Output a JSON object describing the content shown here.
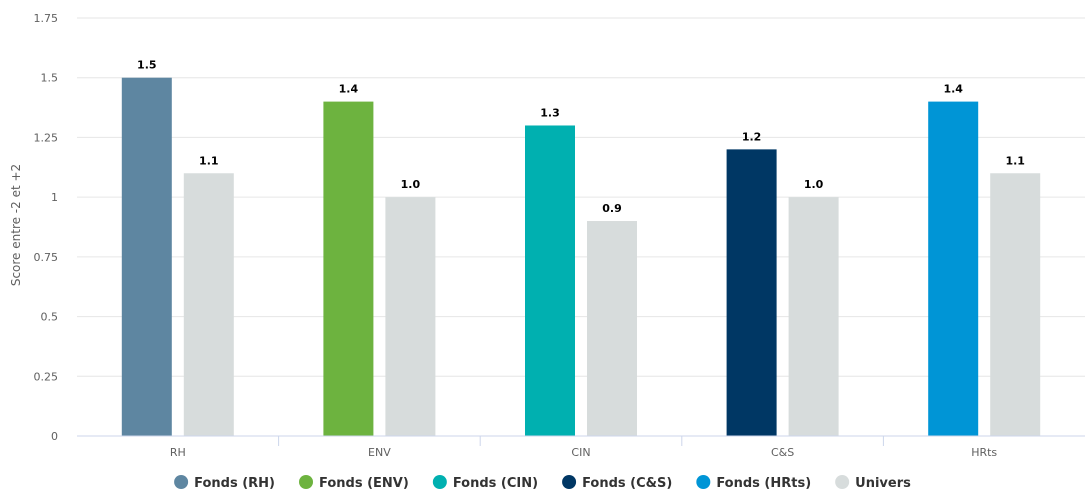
{
  "chart_data": {
    "type": "bar",
    "title": "",
    "xlabel": "",
    "ylabel": "Score entre -2 et +2",
    "ylim": [
      0,
      1.75
    ],
    "yticks": [
      0,
      0.25,
      0.5,
      0.75,
      1,
      1.25,
      1.5,
      1.75
    ],
    "ytick_labels": [
      "0",
      "0.25",
      "0.5",
      "0.75",
      "1",
      "1.25",
      "1.5",
      "1.75"
    ],
    "categories": [
      "RH",
      "ENV",
      "CIN",
      "C&S",
      "HRts"
    ],
    "grid": true,
    "legend_position": "bottom",
    "fund_values": [
      1.5,
      1.4,
      1.3,
      1.2,
      1.4
    ],
    "fund_labels": [
      "1.5",
      "1.4",
      "1.3",
      "1.2",
      "1.4"
    ],
    "universe_values": [
      1.1,
      1.0,
      0.9,
      1.0,
      1.1
    ],
    "universe_labels": [
      "1.1",
      "1.0",
      "0.9",
      "1.0",
      "1.1"
    ],
    "series": [
      {
        "name": "Fonds (RH)",
        "color": "#5e86a1"
      },
      {
        "name": "Fonds (ENV)",
        "color": "#6db33f"
      },
      {
        "name": "Fonds (CIN)",
        "color": "#00b0b0"
      },
      {
        "name": "Fonds (C&S)",
        "color": "#003764"
      },
      {
        "name": "Fonds (HRts)",
        "color": "#0095d6"
      },
      {
        "name": "Univers",
        "color": "#d7dcdc"
      }
    ]
  }
}
